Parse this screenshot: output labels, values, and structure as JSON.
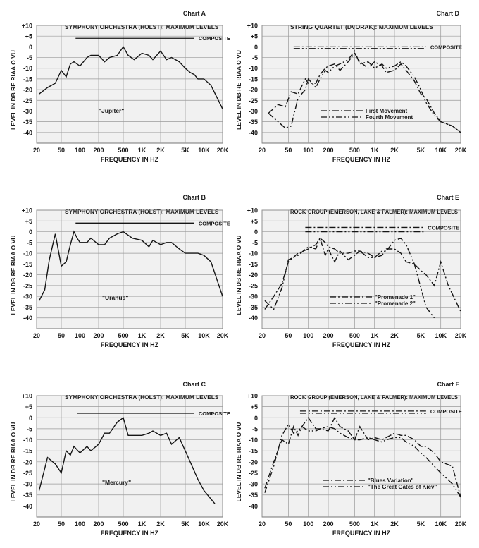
{
  "chart_data": [
    {
      "type": "line",
      "chart_label": "Chart A",
      "title": "SYMPHONY ORCHESTRA (HOLST): MAXIMUM LEVELS",
      "xlabel": "FREQUENCY IN HZ",
      "ylabel": "LEVEL IN DB RE RIAA O VU",
      "x_scale": "log",
      "xlim": [
        20,
        20000
      ],
      "ylim": [
        -45,
        10
      ],
      "x_ticks": [
        "20",
        "50",
        "100",
        "200",
        "500",
        "1K",
        "2K",
        "5K",
        "10K",
        "20K"
      ],
      "y_ticks": [
        "+10",
        "+5",
        "0",
        "-5",
        "-10",
        "-15",
        "-20",
        "-25",
        "-30",
        "-35",
        "-40"
      ],
      "grid": true,
      "composite": {
        "label": "COMPOSITE",
        "level": 4,
        "x_range": [
          85,
          7000
        ]
      },
      "series": [
        {
          "name": "\"Jupiter\"",
          "style": "solid",
          "x": [
            22,
            30,
            40,
            50,
            60,
            70,
            80,
            100,
            130,
            150,
            200,
            250,
            300,
            400,
            500,
            600,
            750,
            1000,
            1300,
            1500,
            2000,
            2500,
            3000,
            4000,
            5000,
            6000,
            7000,
            8000,
            10000,
            13000,
            20000
          ],
          "y": [
            -22,
            -19,
            -17,
            -11,
            -14,
            -8,
            -7,
            -9,
            -5,
            -4,
            -4,
            -7,
            -5,
            -4,
            0,
            -4,
            -6,
            -3,
            -4,
            -6,
            -2,
            -6,
            -5,
            -7,
            -10,
            -12,
            -13,
            -15,
            -15,
            -18,
            -29
          ]
        }
      ]
    },
    {
      "type": "line",
      "chart_label": "Chart D",
      "title": "STRING QUARTET (DVORAK): MAXIMUM LEVELS",
      "xlabel": "FREQUENCY IN HZ",
      "ylabel": "LEVEL IN DB RE RIAA O VU",
      "x_scale": "log",
      "xlim": [
        20,
        20000
      ],
      "ylim": [
        -45,
        10
      ],
      "x_ticks": [
        "20",
        "50",
        "100",
        "200",
        "500",
        "1K",
        "2K",
        "5K",
        "10K",
        "20K"
      ],
      "y_ticks": [
        "+10",
        "+5",
        "0",
        "-5",
        "-10",
        "-15",
        "-20",
        "-25",
        "-30",
        "-35",
        "-40"
      ],
      "grid": true,
      "composites": [
        {
          "label": "COMPOSITE",
          "level": 0,
          "x_range": [
            60,
            6000
          ],
          "style": "dashdot"
        },
        {
          "label": "",
          "level": -0.8,
          "x_range": [
            60,
            6000
          ],
          "style": "dashdotdot"
        }
      ],
      "series": [
        {
          "name": "First Movement",
          "style": "dashdot",
          "x": [
            25,
            35,
            45,
            55,
            70,
            90,
            100,
            130,
            150,
            180,
            200,
            250,
            300,
            400,
            500,
            600,
            800,
            1000,
            1300,
            1500,
            2000,
            2500,
            3000,
            4000,
            5000,
            6000,
            8000,
            10000,
            15000,
            20000
          ],
          "y": [
            -31,
            -27,
            -28,
            -21,
            -22,
            -15,
            -17,
            -17,
            -13,
            -10,
            -9,
            -8,
            -11,
            -7,
            -3,
            -7,
            -10,
            -7,
            -9,
            -12,
            -11,
            -8,
            -11,
            -16,
            -22,
            -24,
            -31,
            -35,
            -37,
            -40
          ]
        },
        {
          "name": "Fourth Movement",
          "style": "dashdotdot",
          "x": [
            25,
            35,
            45,
            55,
            70,
            90,
            100,
            130,
            150,
            180,
            200,
            250,
            300,
            400,
            500,
            600,
            800,
            1000,
            1300,
            1500,
            2000,
            2500,
            3000,
            4000,
            5000,
            6000,
            8000,
            10000,
            15000,
            20000
          ],
          "y": [
            -31,
            -35,
            -38,
            -37,
            -24,
            -20,
            -15,
            -19,
            -15,
            -11,
            -12,
            -9,
            -8,
            -6,
            -2,
            -8,
            -7,
            -10,
            -8,
            -10,
            -9,
            -7,
            -9,
            -14,
            -20,
            -26,
            -32,
            -35,
            -37,
            -40
          ]
        }
      ]
    },
    {
      "type": "line",
      "chart_label": "Chart B",
      "title": "SYMPHONY ORCHESTRA (HOLST): MAXIMUM LEVELS",
      "xlabel": "FREQUENCY IN HZ",
      "ylabel": "LEVEL IN DB RE RIAA O VU",
      "x_scale": "log",
      "xlim": [
        20,
        20000
      ],
      "ylim": [
        -45,
        10
      ],
      "x_ticks": [
        "20",
        "50",
        "100",
        "200",
        "500",
        "1K",
        "2K",
        "5K",
        "10K",
        "20K"
      ],
      "y_ticks": [
        "+10",
        "+5",
        "0",
        "-5",
        "-10",
        "-15",
        "-20",
        "-25",
        "-30",
        "-35",
        "-40"
      ],
      "grid": true,
      "composite": {
        "label": "COMPOSITE",
        "level": 4,
        "x_range": [
          85,
          7000
        ]
      },
      "series": [
        {
          "name": "\"Uranus\"",
          "style": "solid",
          "x": [
            22,
            27,
            32,
            40,
            50,
            60,
            70,
            80,
            90,
            100,
            130,
            150,
            200,
            250,
            300,
            400,
            500,
            700,
            1000,
            1300,
            1500,
            2000,
            2500,
            3000,
            4000,
            5000,
            6000,
            7000,
            8000,
            10000,
            13000,
            20000
          ],
          "y": [
            -32,
            -27,
            -13,
            -1,
            -16,
            -14,
            -6,
            0,
            -3,
            -5,
            -5,
            -3,
            -6,
            -6,
            -3,
            -1,
            0,
            -3,
            -4,
            -7,
            -4,
            -6,
            -5,
            -5,
            -8,
            -10,
            -10,
            -10,
            -10,
            -11,
            -14,
            -30
          ]
        }
      ]
    },
    {
      "type": "line",
      "chart_label": "Chart E",
      "title": "ROCK GROUP (EMERSON, LAKE & PALMER): MAXIMUM LEVELS",
      "xlabel": "FREQUENCY IN HZ",
      "ylabel": "LEVEL IN DB RE RIAA O VU",
      "x_scale": "log",
      "xlim": [
        20,
        20000
      ],
      "ylim": [
        -45,
        10
      ],
      "x_ticks": [
        "20",
        "50",
        "100",
        "200",
        "500",
        "1K",
        "2K",
        "5K",
        "10K",
        "20K"
      ],
      "y_ticks": [
        "+10",
        "+5",
        "0",
        "-5",
        "-10",
        "-15",
        "-20",
        "-25",
        "-30",
        "-35",
        "-40"
      ],
      "grid": true,
      "composites": [
        {
          "label": "COMPOSITE",
          "level": 2,
          "x_range": [
            90,
            5500
          ],
          "style": "dashdot"
        },
        {
          "label": "",
          "level": 0,
          "x_range": [
            90,
            5500
          ],
          "style": "dashdotdot"
        }
      ],
      "series": [
        {
          "name": "\"Promenade 1\"",
          "style": "dashdot",
          "x": [
            22,
            30,
            40,
            50,
            70,
            100,
            130,
            150,
            180,
            200,
            250,
            300,
            400,
            500,
            600,
            800,
            1000,
            1300,
            1500,
            2000,
            2500,
            3000,
            4000,
            5000,
            6000,
            8000,
            10000,
            13000,
            20000
          ],
          "y": [
            -36,
            -30,
            -24,
            -14,
            -10,
            -8,
            -6,
            -3,
            -11,
            -8,
            -14,
            -9,
            -13,
            -11,
            -9,
            -10,
            -12,
            -11,
            -8,
            -8,
            -10,
            -14,
            -15,
            -18,
            -20,
            -25,
            -14,
            -25,
            -37
          ]
        },
        {
          "name": "\"Promenade 2\"",
          "style": "dashdotdot",
          "x": [
            22,
            30,
            40,
            50,
            70,
            100,
            130,
            150,
            180,
            200,
            250,
            300,
            400,
            500,
            600,
            800,
            1000,
            1300,
            1500,
            2000,
            2500,
            3000,
            4000,
            5000,
            6000,
            8000
          ],
          "y": [
            -32,
            -36,
            -26,
            -13,
            -11,
            -7,
            -8,
            -3,
            -5,
            -7,
            -8,
            -10,
            -10,
            -9,
            -9,
            -12,
            -12,
            -9,
            -9,
            -4,
            -3,
            -6,
            -15,
            -26,
            -35,
            -40
          ]
        }
      ]
    },
    {
      "type": "line",
      "chart_label": "Chart C",
      "title": "SYMPHONY ORCHESTRA (HOLST): MAXIMUM LEVELS",
      "xlabel": "FREQUENCY IN HZ",
      "ylabel": "LEVEL IN DB RE RIAA O VU",
      "x_scale": "log",
      "xlim": [
        20,
        20000
      ],
      "ylim": [
        -45,
        10
      ],
      "x_ticks": [
        "20",
        "50",
        "100",
        "200",
        "500",
        "1K",
        "2K",
        "5K",
        "10K",
        "20K"
      ],
      "y_ticks": [
        "+10",
        "+5",
        "0",
        "-5",
        "-10",
        "-15",
        "-20",
        "-25",
        "-30",
        "-35",
        "-40"
      ],
      "grid": true,
      "composite": {
        "label": "COMPOSITE",
        "level": 2,
        "x_range": [
          90,
          7000
        ]
      },
      "series": [
        {
          "name": "\"Mercury\"",
          "style": "solid",
          "x": [
            22,
            30,
            40,
            50,
            60,
            70,
            80,
            100,
            130,
            150,
            200,
            250,
            300,
            400,
            500,
            600,
            700,
            1000,
            1300,
            1500,
            2000,
            2500,
            3000,
            4000,
            5000,
            6000,
            8000,
            10000,
            15000
          ],
          "y": [
            -33,
            -18,
            -21,
            -25,
            -15,
            -17,
            -13,
            -16,
            -13,
            -15,
            -12,
            -7,
            -7,
            -2,
            0,
            -8,
            -8,
            -8,
            -7,
            -6,
            -8,
            -7,
            -12,
            -9,
            -15,
            -20,
            -28,
            -33,
            -39
          ]
        }
      ]
    },
    {
      "type": "line",
      "chart_label": "Chart F",
      "title": "ROCK GROUP (EMERSON, LAKE & PALMER): MAXIMUM LEVELS",
      "xlabel": "FREQUENCY IN HZ",
      "ylabel": "LEVEL IN DB RE RIAA O VU",
      "x_scale": "log",
      "xlim": [
        20,
        20000
      ],
      "ylim": [
        -45,
        10
      ],
      "x_ticks": [
        "20",
        "50",
        "100",
        "200",
        "500",
        "1K",
        "2K",
        "5K",
        "10K",
        "20K"
      ],
      "y_ticks": [
        "+10",
        "+5",
        "0",
        "-5",
        "-10",
        "-15",
        "-20",
        "-25",
        "-30",
        "-35",
        "-40"
      ],
      "grid": true,
      "composites": [
        {
          "label": "COMPOSITE",
          "level": 3,
          "x_range": [
            75,
            6000
          ],
          "style": "dashdot"
        },
        {
          "label": "",
          "level": 2,
          "x_range": [
            75,
            6000
          ],
          "style": "dashdotdot"
        }
      ],
      "series": [
        {
          "name": "\"Blues Variation\"",
          "style": "dashdot",
          "x": [
            22,
            30,
            40,
            50,
            60,
            70,
            80,
            100,
            130,
            150,
            200,
            250,
            300,
            400,
            500,
            600,
            800,
            1000,
            1300,
            1500,
            2000,
            2500,
            3000,
            4000,
            5000,
            6000,
            8000,
            10000,
            15000,
            20000
          ],
          "y": [
            -32,
            -20,
            -10,
            -12,
            -4,
            -8,
            -4,
            0,
            -5,
            -5,
            -6,
            0,
            -4,
            -6,
            -10,
            -4,
            -10,
            -9,
            -10,
            -9,
            -7,
            -8,
            -8,
            -10,
            -13,
            -13,
            -16,
            -20,
            -22,
            -36
          ]
        },
        {
          "name": "\"The Great Gates of Kiev\"",
          "style": "dashdotdot",
          "x": [
            22,
            30,
            40,
            50,
            60,
            70,
            80,
            100,
            130,
            150,
            200,
            250,
            300,
            400,
            500,
            600,
            800,
            1000,
            1300,
            1500,
            2000,
            2500,
            3000,
            4000,
            5000,
            6000,
            8000,
            10000,
            15000,
            20000
          ],
          "y": [
            -34,
            -22,
            -8,
            -3,
            -7,
            -6,
            -4,
            -6,
            -6,
            -5,
            -4,
            -5,
            -7,
            -9,
            -10,
            -10,
            -9,
            -10,
            -11,
            -10,
            -9,
            -9,
            -11,
            -13,
            -16,
            -18,
            -22,
            -25,
            -30,
            -36
          ]
        }
      ]
    }
  ]
}
